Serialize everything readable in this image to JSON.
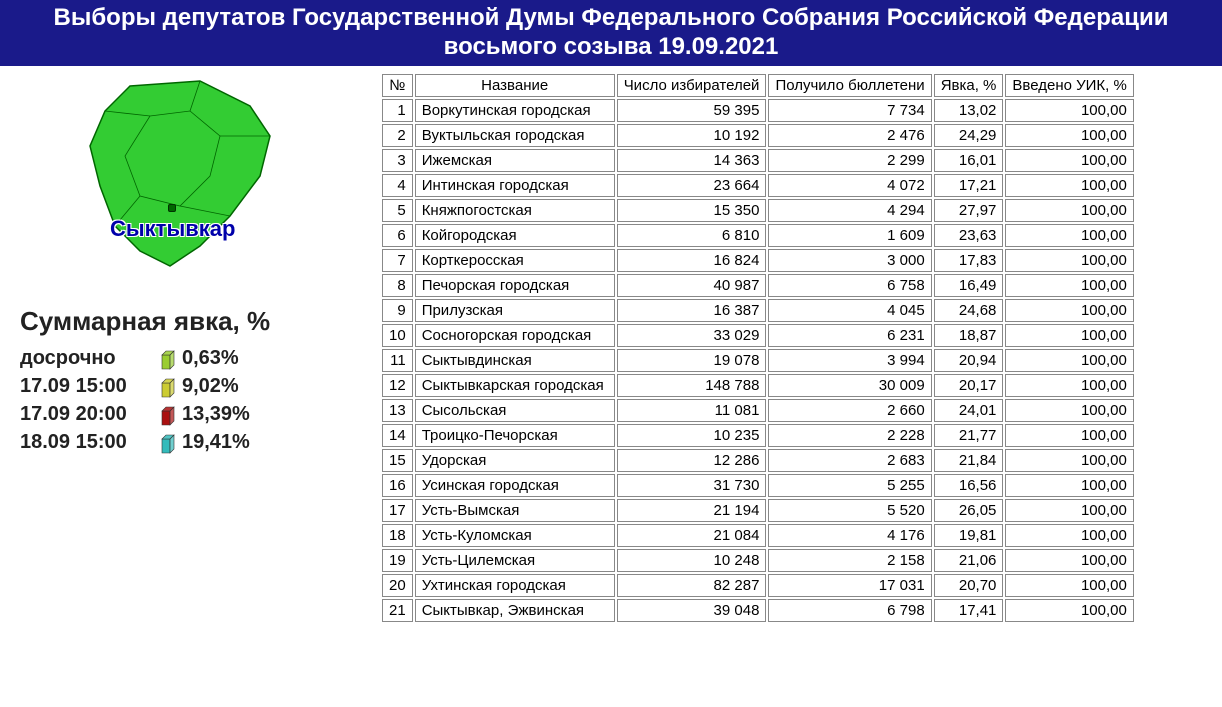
{
  "header": {
    "title": "Выборы депутатов Государственной Думы Федерального Собрания Российской Федерации восьмого созыва 19.09.2021"
  },
  "map": {
    "city_label": "Сыктывкар",
    "fill_color": "#33cc33",
    "stroke_color": "#006600",
    "label_color": "#0000aa"
  },
  "turnout": {
    "title": "Суммарная явка, %",
    "rows": [
      {
        "label": "досрочно",
        "value": "0,63%",
        "cube_color": "#9acd32"
      },
      {
        "label": "17.09 15:00",
        "value": "9,02%",
        "cube_color": "#cccc33"
      },
      {
        "label": "17.09 20:00",
        "value": "13,39%",
        "cube_color": "#aa1111"
      },
      {
        "label": "18.09 15:00",
        "value": "19,41%",
        "cube_color": "#33bbbb"
      }
    ]
  },
  "table": {
    "columns": [
      "№",
      "Название",
      "Число избирателей",
      "Получило бюллетени",
      "Явка, %",
      "Введено УИК, %"
    ],
    "rows": [
      [
        "1",
        "Воркутинская городская",
        "59 395",
        "7 734",
        "13,02",
        "100,00"
      ],
      [
        "2",
        "Вуктыльская городская",
        "10 192",
        "2 476",
        "24,29",
        "100,00"
      ],
      [
        "3",
        "Ижемская",
        "14 363",
        "2 299",
        "16,01",
        "100,00"
      ],
      [
        "4",
        "Интинская городская",
        "23 664",
        "4 072",
        "17,21",
        "100,00"
      ],
      [
        "5",
        "Княжпогостская",
        "15 350",
        "4 294",
        "27,97",
        "100,00"
      ],
      [
        "6",
        "Койгородская",
        "6 810",
        "1 609",
        "23,63",
        "100,00"
      ],
      [
        "7",
        "Корткеросская",
        "16 824",
        "3 000",
        "17,83",
        "100,00"
      ],
      [
        "8",
        "Печорская городская",
        "40 987",
        "6 758",
        "16,49",
        "100,00"
      ],
      [
        "9",
        "Прилузская",
        "16 387",
        "4 045",
        "24,68",
        "100,00"
      ],
      [
        "10",
        "Сосногорская городская",
        "33 029",
        "6 231",
        "18,87",
        "100,00"
      ],
      [
        "11",
        "Сыктывдинская",
        "19 078",
        "3 994",
        "20,94",
        "100,00"
      ],
      [
        "12",
        "Сыктывкарская городская",
        "148 788",
        "30 009",
        "20,17",
        "100,00"
      ],
      [
        "13",
        "Сысольская",
        "11 081",
        "2 660",
        "24,01",
        "100,00"
      ],
      [
        "14",
        "Троицко-Печорская",
        "10 235",
        "2 228",
        "21,77",
        "100,00"
      ],
      [
        "15",
        "Удорская",
        "12 286",
        "2 683",
        "21,84",
        "100,00"
      ],
      [
        "16",
        "Усинская городская",
        "31 730",
        "5 255",
        "16,56",
        "100,00"
      ],
      [
        "17",
        "Усть-Вымская",
        "21 194",
        "5 520",
        "26,05",
        "100,00"
      ],
      [
        "18",
        "Усть-Куломская",
        "21 084",
        "4 176",
        "19,81",
        "100,00"
      ],
      [
        "19",
        "Усть-Цилемская",
        "10 248",
        "2 158",
        "21,06",
        "100,00"
      ],
      [
        "20",
        "Ухтинская городская",
        "82 287",
        "17 031",
        "20,70",
        "100,00"
      ],
      [
        "21",
        "Сыктывкар, Эжвинская",
        "39 048",
        "6 798",
        "17,41",
        "100,00"
      ]
    ]
  },
  "styles": {
    "header_bg": "#1a1a8a",
    "header_fg": "#ffffff",
    "table_border": "#888888",
    "font_family": "Arial"
  }
}
